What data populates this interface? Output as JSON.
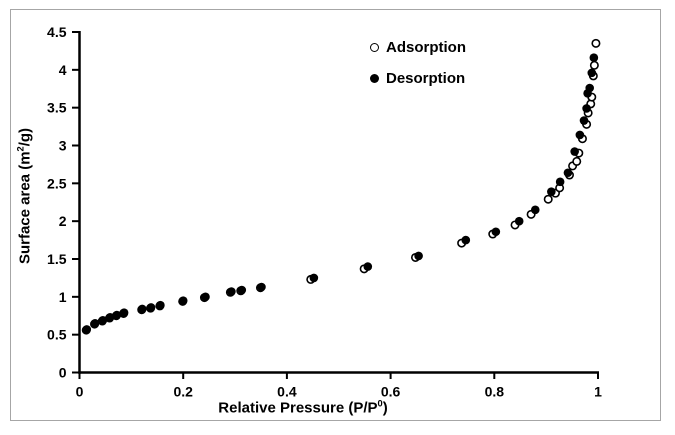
{
  "figure": {
    "background_color": "#ffffff",
    "border_color": "#a6a6a6",
    "marker_color": "#000000"
  },
  "chart_data": {
    "type": "scatter",
    "title": "",
    "xlabel": "Relative Pressure (P/P⁰)",
    "ylabel": "Surface area (m²/g)",
    "xlabel_parts": {
      "main": "Relative Pressure (P/P",
      "sup": "0",
      "end": ")"
    },
    "ylabel_parts": {
      "main": "Surface area (m",
      "sup": "2",
      "end": "/g)"
    },
    "xlim": [
      0,
      1
    ],
    "ylim": [
      0,
      4.5
    ],
    "grid": false,
    "legend_position": "upper-center-inside",
    "x_ticks": {
      "values": [
        0,
        0.2,
        0.4,
        0.6,
        0.8,
        1
      ],
      "labels": [
        "0",
        "0.2",
        "0.4",
        "0.6",
        "0.8",
        "1"
      ]
    },
    "y_ticks": {
      "values": [
        0,
        0.5,
        1,
        1.5,
        2,
        2.5,
        3,
        3.5,
        4,
        4.5
      ],
      "labels": [
        "0",
        "0.5",
        "1",
        "1.5",
        "2",
        "2.5",
        "3",
        "3.5",
        "4",
        "4.5"
      ]
    },
    "series": [
      {
        "name": "Adsorption",
        "marker": "open-circle",
        "color": "#000000",
        "points": [
          [
            0.013,
            0.56
          ],
          [
            0.029,
            0.64
          ],
          [
            0.044,
            0.68
          ],
          [
            0.058,
            0.72
          ],
          [
            0.071,
            0.75
          ],
          [
            0.085,
            0.78
          ],
          [
            0.12,
            0.83
          ],
          [
            0.137,
            0.85
          ],
          [
            0.155,
            0.88
          ],
          [
            0.199,
            0.94
          ],
          [
            0.241,
            0.99
          ],
          [
            0.291,
            1.06
          ],
          [
            0.311,
            1.08
          ],
          [
            0.349,
            1.12
          ],
          [
            0.446,
            1.23
          ],
          [
            0.549,
            1.37
          ],
          [
            0.648,
            1.52
          ],
          [
            0.737,
            1.71
          ],
          [
            0.797,
            1.83
          ],
          [
            0.84,
            1.95
          ],
          [
            0.871,
            2.09
          ],
          [
            0.904,
            2.29
          ],
          [
            0.918,
            2.37
          ],
          [
            0.926,
            2.44
          ],
          [
            0.945,
            2.61
          ],
          [
            0.951,
            2.73
          ],
          [
            0.959,
            2.79
          ],
          [
            0.963,
            2.9
          ],
          [
            0.97,
            3.09
          ],
          [
            0.978,
            3.28
          ],
          [
            0.981,
            3.43
          ],
          [
            0.986,
            3.55
          ],
          [
            0.988,
            3.64
          ],
          [
            0.991,
            3.92
          ],
          [
            0.993,
            4.06
          ],
          [
            0.996,
            4.35
          ]
        ]
      },
      {
        "name": "Desorption",
        "marker": "filled-circle",
        "color": "#000000",
        "points": [
          [
            0.014,
            0.57
          ],
          [
            0.03,
            0.65
          ],
          [
            0.045,
            0.69
          ],
          [
            0.059,
            0.73
          ],
          [
            0.072,
            0.76
          ],
          [
            0.086,
            0.79
          ],
          [
            0.121,
            0.84
          ],
          [
            0.138,
            0.86
          ],
          [
            0.156,
            0.89
          ],
          [
            0.2,
            0.95
          ],
          [
            0.243,
            1.0
          ],
          [
            0.293,
            1.07
          ],
          [
            0.313,
            1.09
          ],
          [
            0.351,
            1.13
          ],
          [
            0.452,
            1.25
          ],
          [
            0.556,
            1.4
          ],
          [
            0.654,
            1.54
          ],
          [
            0.745,
            1.75
          ],
          [
            0.803,
            1.86
          ],
          [
            0.848,
            2.0
          ],
          [
            0.879,
            2.15
          ],
          [
            0.91,
            2.39
          ],
          [
            0.927,
            2.52
          ],
          [
            0.942,
            2.64
          ],
          [
            0.955,
            2.92
          ],
          [
            0.965,
            3.14
          ],
          [
            0.973,
            3.33
          ],
          [
            0.978,
            3.49
          ],
          [
            0.98,
            3.69
          ],
          [
            0.984,
            3.76
          ],
          [
            0.988,
            3.96
          ],
          [
            0.992,
            4.16
          ]
        ]
      }
    ]
  },
  "legend": {
    "items": [
      {
        "label": "Adsorption",
        "marker": "open-circle"
      },
      {
        "label": "Desorption",
        "marker": "filled-circle"
      }
    ]
  }
}
